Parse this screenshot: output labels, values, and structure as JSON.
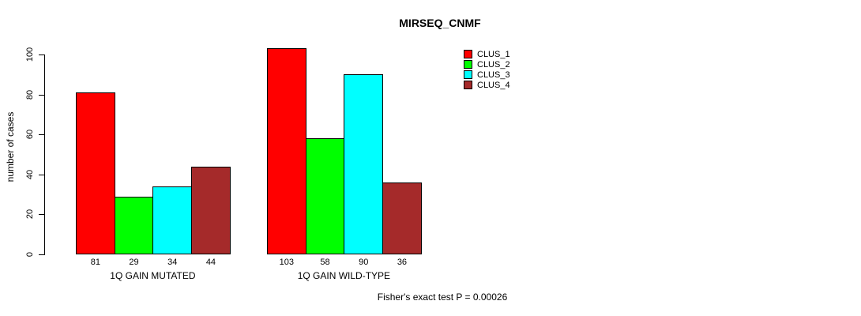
{
  "chart_data": {
    "type": "bar",
    "title": "MIRSEQ_CNMF",
    "ylabel": "number of cases",
    "xlabel": "",
    "ylim": [
      0,
      100
    ],
    "yticks": [
      0,
      20,
      40,
      60,
      80,
      100
    ],
    "grid": false,
    "legend_position": "top-right",
    "groups": [
      "1Q GAIN MUTATED",
      "1Q GAIN WILD-TYPE"
    ],
    "series": [
      {
        "name": "CLUS_1",
        "color": "#FF0000",
        "values": [
          81,
          103
        ]
      },
      {
        "name": "CLUS_2",
        "color": "#00FF00",
        "values": [
          29,
          58
        ]
      },
      {
        "name": "CLUS_3",
        "color": "#00FFFF",
        "values": [
          34,
          90
        ]
      },
      {
        "name": "CLUS_4",
        "color": "#A52A2A",
        "values": [
          44,
          36
        ]
      }
    ],
    "bar_value_labels": [
      [
        81,
        29,
        34,
        44
      ],
      [
        103,
        58,
        90,
        36
      ]
    ],
    "annotation": "Fisher's exact test P = 0.00026"
  }
}
